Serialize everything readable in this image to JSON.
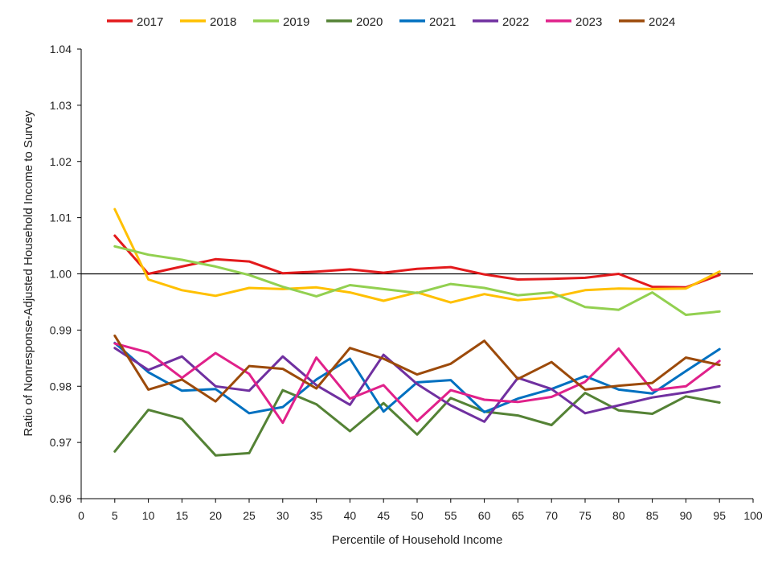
{
  "chart_data": {
    "type": "line",
    "xlabel": "Percentile of Household Income",
    "ylabel": "Ratio of Nonresponse-Adjusted Household Income to Survey",
    "xlim": [
      0,
      100
    ],
    "ylim": [
      0.96,
      1.04
    ],
    "x_ticks": [
      "0",
      "5",
      "10",
      "15",
      "20",
      "25",
      "30",
      "35",
      "40",
      "45",
      "50",
      "55",
      "60",
      "65",
      "70",
      "75",
      "80",
      "85",
      "90",
      "95",
      "100"
    ],
    "y_ticks": [
      "0.96",
      "0.97",
      "0.98",
      "0.99",
      "1.00",
      "1.01",
      "1.02",
      "1.03",
      "1.04"
    ],
    "reference_line": 1.0,
    "legend_position": "top",
    "x": [
      5,
      10,
      15,
      20,
      25,
      30,
      35,
      40,
      45,
      50,
      55,
      60,
      65,
      70,
      75,
      80,
      85,
      90,
      95
    ],
    "series": [
      {
        "name": "2017",
        "color": "#E31A1C",
        "values": [
          1.0068,
          1.0,
          1.0013,
          1.0026,
          1.0022,
          1.0001,
          1.0004,
          1.0008,
          1.0002,
          1.0009,
          1.0012,
          0.9999,
          0.999,
          0.9991,
          0.9993,
          1.0,
          0.9977,
          0.9976,
          0.9998
        ]
      },
      {
        "name": "2018",
        "color": "#FFC000",
        "values": [
          1.0115,
          0.999,
          0.9971,
          0.9961,
          0.9975,
          0.9973,
          0.9976,
          0.9967,
          0.9952,
          0.9967,
          0.9949,
          0.9964,
          0.9953,
          0.9958,
          0.9971,
          0.9974,
          0.9973,
          0.9974,
          1.0004
        ]
      },
      {
        "name": "2019",
        "color": "#92D050",
        "values": [
          1.0049,
          1.0034,
          1.0025,
          1.0013,
          0.9998,
          0.9977,
          0.996,
          0.998,
          0.9973,
          0.9966,
          0.9982,
          0.9975,
          0.9962,
          0.9967,
          0.9941,
          0.9936,
          0.9967,
          0.9927,
          0.9933
        ]
      },
      {
        "name": "2020",
        "color": "#548235",
        "values": [
          0.9684,
          0.9758,
          0.9742,
          0.9677,
          0.9681,
          0.9793,
          0.9768,
          0.972,
          0.977,
          0.9714,
          0.9779,
          0.9755,
          0.9748,
          0.9731,
          0.9788,
          0.9757,
          0.9751,
          0.9782,
          0.9771
        ]
      },
      {
        "name": "2021",
        "color": "#0070C0",
        "values": [
          0.9877,
          0.9825,
          0.9792,
          0.9795,
          0.9752,
          0.9763,
          0.9812,
          0.9849,
          0.9755,
          0.9807,
          0.9811,
          0.9754,
          0.9778,
          0.9795,
          0.9818,
          0.9794,
          0.9787,
          0.9827,
          0.9866
        ]
      },
      {
        "name": "2022",
        "color": "#7030A0",
        "values": [
          0.9868,
          0.9829,
          0.9853,
          0.98,
          0.9792,
          0.9853,
          0.9802,
          0.9767,
          0.9856,
          0.9804,
          0.9766,
          0.9737,
          0.9815,
          0.9795,
          0.9752,
          0.9766,
          0.978,
          0.9789,
          0.98
        ]
      },
      {
        "name": "2023",
        "color": "#E0218A",
        "values": [
          0.9876,
          0.986,
          0.9815,
          0.9859,
          0.9822,
          0.9735,
          0.9851,
          0.9778,
          0.9802,
          0.9738,
          0.9793,
          0.9776,
          0.9772,
          0.9781,
          0.9808,
          0.9867,
          0.9793,
          0.98,
          0.9845
        ]
      },
      {
        "name": "2024",
        "color": "#9C4A0A",
        "values": [
          0.989,
          0.9794,
          0.9812,
          0.9773,
          0.9836,
          0.9831,
          0.9796,
          0.9868,
          0.9849,
          0.9821,
          0.984,
          0.9881,
          0.9813,
          0.9843,
          0.9794,
          0.9801,
          0.9806,
          0.9851,
          0.9838
        ]
      }
    ]
  }
}
